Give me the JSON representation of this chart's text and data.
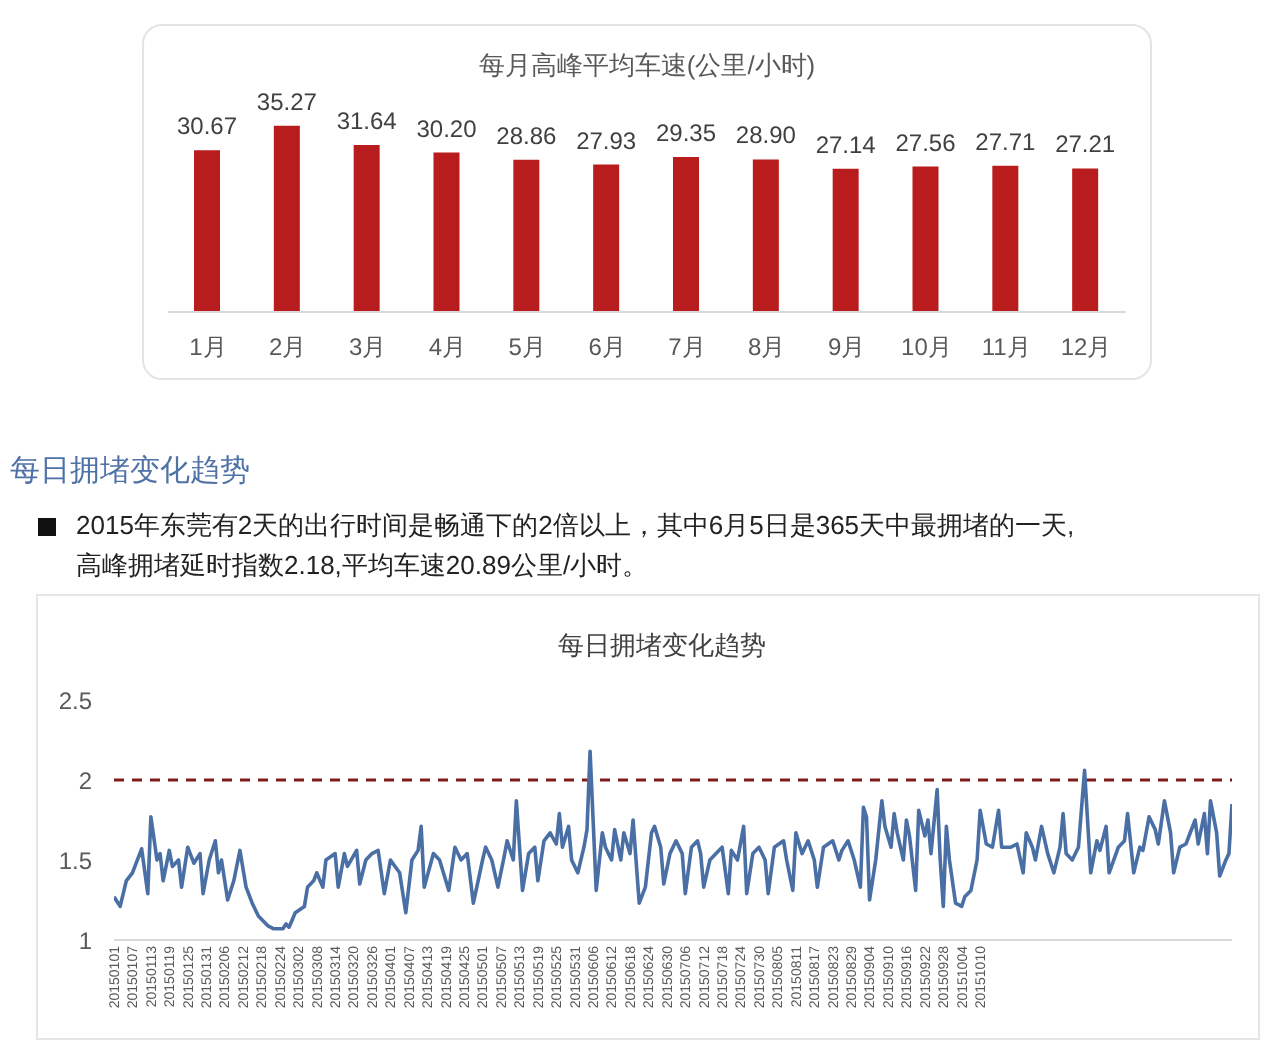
{
  "chart_data": [
    {
      "type": "bar",
      "title": "每月高峰平均车速(公里/小时)",
      "categories": [
        "1月",
        "2月",
        "3月",
        "4月",
        "5月",
        "6月",
        "7月",
        "8月",
        "9月",
        "10月",
        "11月",
        "12月"
      ],
      "values": [
        30.67,
        35.27,
        31.64,
        30.2,
        28.86,
        27.93,
        29.35,
        28.9,
        27.14,
        27.56,
        27.71,
        27.21
      ],
      "value_labels": [
        "30.67",
        "35.27",
        "31.64",
        "30.20",
        "28.86",
        "27.93",
        "29.35",
        "28.90",
        "27.14",
        "27.56",
        "27.71",
        "27.21"
      ],
      "color": "#b81c1c",
      "tick_labels": "x"
    },
    {
      "type": "line",
      "title": "每日拥堵变化趋势",
      "annotations": [
        "每日拥堵变化趋势",
        "2015年东莞有2天的出行时间是畅通下的2倍以上，其中6月5日是365天中最拥堵的一天,高峰拥堵延时指数2.18,平均车速20.89公里/小时。"
      ],
      "x": [
        "2015-01-01",
        "2015-01-03",
        "2015-01-05",
        "2015-01-07",
        "2015-01-10",
        "2015-01-12",
        "2015-01-13",
        "2015-01-15",
        "2015-01-16",
        "2015-01-17",
        "2015-01-19",
        "2015-01-20",
        "2015-01-22",
        "2015-01-23",
        "2015-01-25",
        "2015-01-27",
        "2015-01-29",
        "2015-01-30",
        "2015-02-01",
        "2015-02-03",
        "2015-02-04",
        "2015-02-05",
        "2015-02-07",
        "2015-02-09",
        "2015-02-11",
        "2015-02-13",
        "2015-02-15",
        "2015-02-17",
        "2015-02-20",
        "2015-02-22",
        "2015-02-25",
        "2015-02-26",
        "2015-02-27",
        "2015-03-01",
        "2015-03-04",
        "2015-03-05",
        "2015-03-07",
        "2015-03-08",
        "2015-03-10",
        "2015-03-11",
        "2015-03-14",
        "2015-03-15",
        "2015-03-17",
        "2015-03-18",
        "2015-03-21",
        "2015-03-22",
        "2015-03-24",
        "2015-03-26",
        "2015-03-28",
        "2015-03-30",
        "2015-04-01",
        "2015-04-04",
        "2015-04-06",
        "2015-04-08",
        "2015-04-10",
        "2015-04-11",
        "2015-04-12",
        "2015-04-15",
        "2015-04-17",
        "2015-04-20",
        "2015-04-22",
        "2015-04-24",
        "2015-04-26",
        "2015-04-28",
        "2015-05-01",
        "2015-05-02",
        "2015-05-04",
        "2015-05-06",
        "2015-05-08",
        "2015-05-09",
        "2015-05-11",
        "2015-05-12",
        "2015-05-14",
        "2015-05-16",
        "2015-05-18",
        "2015-05-19",
        "2015-05-21",
        "2015-05-23",
        "2015-05-25",
        "2015-05-26",
        "2015-05-27",
        "2015-05-29",
        "2015-05-30",
        "2015-06-01",
        "2015-06-02",
        "2015-06-03",
        "2015-06-04",
        "2015-06-05",
        "2015-06-07",
        "2015-06-09",
        "2015-06-10",
        "2015-06-12",
        "2015-06-13",
        "2015-06-15",
        "2015-06-16",
        "2015-06-18",
        "2015-06-19",
        "2015-06-21",
        "2015-06-23",
        "2015-06-25",
        "2015-06-26",
        "2015-06-28",
        "2015-06-29",
        "2015-07-01",
        "2015-07-03",
        "2015-07-05",
        "2015-07-06",
        "2015-07-08",
        "2015-07-10",
        "2015-07-11",
        "2015-07-12",
        "2015-07-14",
        "2015-07-16",
        "2015-07-18",
        "2015-07-20",
        "2015-07-21",
        "2015-07-23",
        "2015-07-25",
        "2015-07-26",
        "2015-07-28",
        "2015-07-30",
        "2015-08-01",
        "2015-08-02",
        "2015-08-04",
        "2015-08-07",
        "2015-08-08",
        "2015-08-10",
        "2015-08-11",
        "2015-08-13",
        "2015-08-15",
        "2015-08-17",
        "2015-08-18",
        "2015-08-20",
        "2015-08-23",
        "2015-08-25",
        "2015-08-26",
        "2015-08-28",
        "2015-08-30",
        "2015-09-01",
        "2015-09-02",
        "2015-09-03",
        "2015-09-04",
        "2015-09-06",
        "2015-09-08",
        "2015-09-09",
        "2015-09-11",
        "2015-09-12",
        "2015-09-13",
        "2015-09-15",
        "2015-09-16",
        "2015-09-17",
        "2015-09-19",
        "2015-09-20",
        "2015-09-22",
        "2015-09-23",
        "2015-09-24",
        "2015-09-26",
        "2015-09-27",
        "2015-09-28",
        "2015-09-29",
        "2015-09-30",
        "2015-10-02",
        "2015-10-04",
        "2015-10-05",
        "2015-10-07",
        "2015-10-09",
        "2015-10-10",
        "2015-10-12",
        "2015-10-14",
        "2015-10-16",
        "2015-10-17",
        "2015-10-20",
        "2015-10-22",
        "2015-10-24",
        "2015-10-25",
        "2015-10-27",
        "2015-10-28",
        "2015-10-30",
        "2015-11-01",
        "2015-11-03",
        "2015-11-05",
        "2015-11-06",
        "2015-11-07",
        "2015-11-09",
        "2015-11-11",
        "2015-11-13",
        "2015-11-15",
        "2015-11-17",
        "2015-11-18",
        "2015-11-20",
        "2015-11-21",
        "2015-11-24",
        "2015-11-26",
        "2015-11-27",
        "2015-11-29",
        "2015-12-01",
        "2015-12-02",
        "2015-12-04",
        "2015-12-06",
        "2015-12-07",
        "2015-12-09",
        "2015-12-11",
        "2015-12-12",
        "2015-12-14",
        "2015-12-16",
        "2015-12-19",
        "2015-12-20",
        "2015-12-22",
        "2015-12-23",
        "2015-12-24",
        "2015-12-26",
        "2015-12-27",
        "2015-12-29",
        "2015-12-30",
        "2015-12-31"
      ],
      "series": [
        {
          "color": "#4a6fa5",
          "values": [
            1.27,
            1.21,
            1.37,
            1.42,
            1.57,
            1.29,
            1.77,
            1.5,
            1.54,
            1.37,
            1.56,
            1.46,
            1.5,
            1.33,
            1.58,
            1.48,
            1.54,
            1.29,
            1.5,
            1.62,
            1.42,
            1.5,
            1.25,
            1.37,
            1.56,
            1.33,
            1.23,
            1.15,
            1.09,
            1.07,
            1.07,
            1.1,
            1.08,
            1.17,
            1.21,
            1.33,
            1.37,
            1.42,
            1.33,
            1.5,
            1.54,
            1.33,
            1.54,
            1.46,
            1.56,
            1.35,
            1.5,
            1.54,
            1.56,
            1.29,
            1.5,
            1.42,
            1.17,
            1.5,
            1.56,
            1.71,
            1.33,
            1.54,
            1.5,
            1.31,
            1.58,
            1.5,
            1.54,
            1.23,
            1.5,
            1.58,
            1.5,
            1.33,
            1.52,
            1.62,
            1.5,
            1.87,
            1.31,
            1.54,
            1.58,
            1.37,
            1.62,
            1.67,
            1.6,
            1.79,
            1.58,
            1.71,
            1.5,
            1.42,
            1.5,
            1.58,
            1.69,
            2.18,
            1.31,
            1.67,
            1.58,
            1.5,
            1.69,
            1.5,
            1.67,
            1.54,
            1.75,
            1.23,
            1.33,
            1.67,
            1.71,
            1.58,
            1.35,
            1.54,
            1.62,
            1.54,
            1.29,
            1.58,
            1.62,
            1.54,
            1.33,
            1.5,
            1.54,
            1.58,
            1.29,
            1.56,
            1.5,
            1.71,
            1.29,
            1.54,
            1.58,
            1.5,
            1.29,
            1.58,
            1.62,
            1.5,
            1.31,
            1.67,
            1.54,
            1.62,
            1.5,
            1.33,
            1.58,
            1.62,
            1.5,
            1.56,
            1.62,
            1.5,
            1.33,
            1.83,
            1.77,
            1.25,
            1.5,
            1.87,
            1.71,
            1.58,
            1.79,
            1.67,
            1.5,
            1.75,
            1.65,
            1.31,
            1.81,
            1.65,
            1.75,
            1.54,
            1.94,
            1.5,
            1.21,
            1.71,
            1.5,
            1.23,
            1.21,
            1.27,
            1.31,
            1.5,
            1.81,
            1.6,
            1.58,
            1.81,
            1.58,
            1.58,
            1.6,
            1.42,
            1.67,
            1.58,
            1.5,
            1.71,
            1.54,
            1.42,
            1.58,
            1.79,
            1.54,
            1.5,
            1.58,
            2.06,
            1.42,
            1.62,
            1.56,
            1.71,
            1.42,
            1.58,
            1.62,
            1.79,
            1.42,
            1.58,
            1.56,
            1.77,
            1.69,
            1.6,
            1.87,
            1.67,
            1.42,
            1.58,
            1.6,
            1.75,
            1.6,
            1.79,
            1.54,
            1.87,
            1.67,
            1.4,
            1.5,
            1.54,
            1.85
          ]
        }
      ],
      "xlim": [
        "2015-01-01",
        "2015-12-31"
      ],
      "xticks": [
        {
          "value": "2015-01-01",
          "label": "20150101"
        },
        {
          "value": "2015-01-07",
          "label": "20150107"
        },
        {
          "value": "2015-01-13",
          "label": "20150113"
        },
        {
          "value": "2015-01-19",
          "label": "20150119"
        },
        {
          "value": "2015-01-25",
          "label": "20150125"
        },
        {
          "value": "2015-01-31",
          "label": "20150131"
        },
        {
          "value": "2015-02-06",
          "label": "20150206"
        },
        {
          "value": "2015-02-12",
          "label": "20150212"
        },
        {
          "value": "2015-02-18",
          "label": "20150218"
        },
        {
          "value": "2015-02-24",
          "label": "20150224"
        },
        {
          "value": "2015-03-02",
          "label": "20150302"
        },
        {
          "value": "2015-03-08",
          "label": "20150308"
        },
        {
          "value": "2015-03-14",
          "label": "20150314"
        },
        {
          "value": "2015-03-20",
          "label": "20150320"
        },
        {
          "value": "2015-03-26",
          "label": "20150326"
        },
        {
          "value": "2015-04-01",
          "label": "20150401"
        },
        {
          "value": "2015-04-07",
          "label": "20150407"
        },
        {
          "value": "2015-04-13",
          "label": "20150413"
        },
        {
          "value": "2015-04-19",
          "label": "20150419"
        },
        {
          "value": "2015-04-25",
          "label": "20150425"
        },
        {
          "value": "2015-05-01",
          "label": "20150501"
        },
        {
          "value": "2015-05-07",
          "label": "20150507"
        },
        {
          "value": "2015-05-13",
          "label": "20150513"
        },
        {
          "value": "2015-05-19",
          "label": "20150519"
        },
        {
          "value": "2015-05-25",
          "label": "20150525"
        },
        {
          "value": "2015-05-31",
          "label": "20150531"
        },
        {
          "value": "2015-06-06",
          "label": "20150606"
        },
        {
          "value": "2015-06-12",
          "label": "20150612"
        },
        {
          "value": "2015-06-18",
          "label": "20150618"
        },
        {
          "value": "2015-06-24",
          "label": "20150624"
        },
        {
          "value": "2015-06-30",
          "label": "20150630"
        },
        {
          "value": "2015-07-06",
          "label": "20150706"
        },
        {
          "value": "2015-07-12",
          "label": "20150712"
        },
        {
          "value": "2015-07-18",
          "label": "20150718"
        },
        {
          "value": "2015-07-24",
          "label": "20150724"
        },
        {
          "value": "2015-07-30",
          "label": "20150730"
        },
        {
          "value": "2015-08-05",
          "label": "20150805"
        },
        {
          "value": "2015-08-11",
          "label": "20150811"
        },
        {
          "value": "2015-08-17",
          "label": "20150817"
        },
        {
          "value": "2015-08-23",
          "label": "20150823"
        },
        {
          "value": "2015-08-29",
          "label": "20150829"
        },
        {
          "value": "2015-09-04",
          "label": "20150904"
        },
        {
          "value": "2015-09-10",
          "label": "20150910"
        },
        {
          "value": "2015-09-16",
          "label": "20150916"
        },
        {
          "value": "2015-09-22",
          "label": "20150922"
        },
        {
          "value": "2015-09-28",
          "label": "20150928"
        },
        {
          "value": "2015-10-04",
          "label": "20151004"
        },
        {
          "value": "2015-10-10",
          "label": "20151010"
        }
      ],
      "ylim": [
        1,
        2.5
      ],
      "yticks": [
        1,
        1.5,
        2,
        2.5
      ],
      "ref_lines": [
        {
          "axis": "y",
          "value": 2,
          "color": "#7f1d1d",
          "line_style": "dashed"
        }
      ],
      "marker": "none",
      "line_style": "solid"
    }
  ]
}
